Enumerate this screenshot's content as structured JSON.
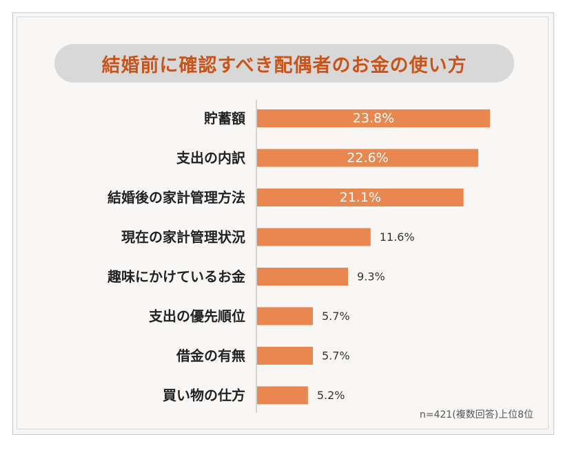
{
  "title": "結婚前に確認すべき配偶者のお金の使い方",
  "footnote": "n=421(複数回答)上位8位",
  "colors": {
    "bar": "#e8874f",
    "title": "#c9541a",
    "label": "#222222",
    "inside_value": "#ffffff",
    "outside_value": "#333333"
  },
  "chart_data": {
    "type": "bar",
    "orientation": "horizontal",
    "categories": [
      "貯蓄額",
      "支出の内訳",
      "結婚後の家計管理方法",
      "現在の家計管理状況",
      "趣味にかけているお金",
      "支出の優先順位",
      "借金の有無",
      "買い物の仕方"
    ],
    "values": [
      23.8,
      22.6,
      21.1,
      11.6,
      9.3,
      5.7,
      5.7,
      5.2
    ],
    "value_labels": [
      "23.8%",
      "22.6%",
      "21.1%",
      "11.6%",
      "9.3%",
      "5.7%",
      "5.7%",
      "5.2%"
    ],
    "unit": "%",
    "title": "結婚前に確認すべき配偶者のお金の使い方",
    "xlim": [
      0,
      25
    ],
    "grid": false,
    "legend": "none"
  }
}
